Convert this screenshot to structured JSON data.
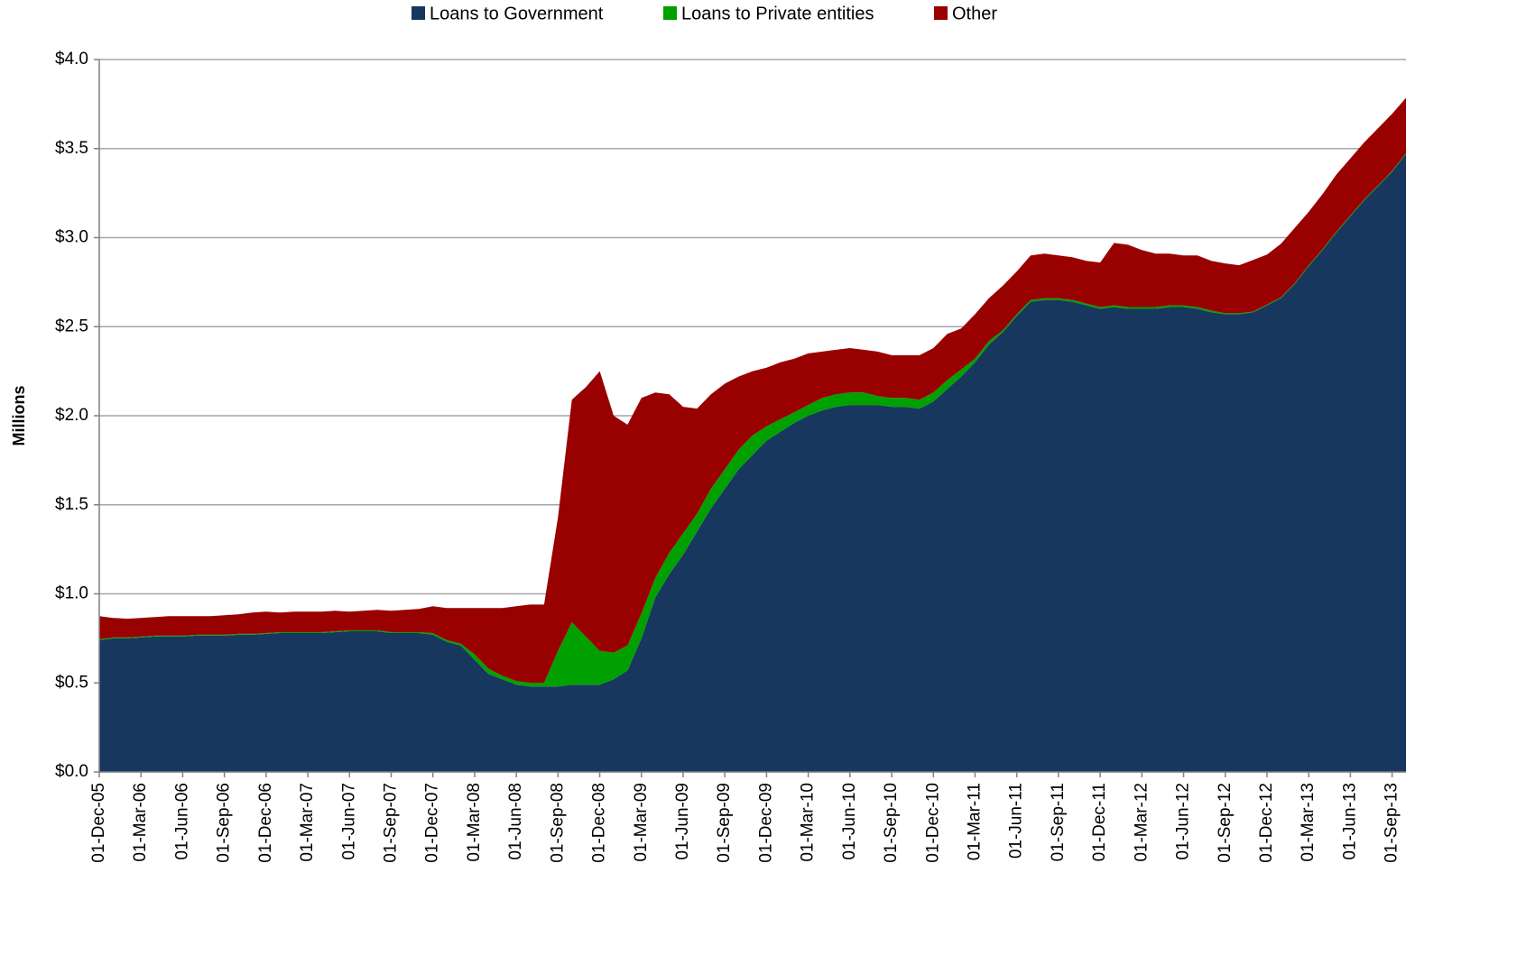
{
  "chart_data": {
    "type": "stacked-area",
    "y_label": "Millions",
    "ylim": [
      0,
      4
    ],
    "yticks": [
      {
        "value": 0,
        "label": "$0.0"
      },
      {
        "value": 0.5,
        "label": "$0.5"
      },
      {
        "value": 1,
        "label": "$1.0"
      },
      {
        "value": 1.5,
        "label": "$1.5"
      },
      {
        "value": 2,
        "label": "$2.0"
      },
      {
        "value": 2.5,
        "label": "$2.5"
      },
      {
        "value": 3,
        "label": "$3.0"
      },
      {
        "value": 3.5,
        "label": "$3.5"
      },
      {
        "value": 4,
        "label": "$4.0"
      }
    ],
    "grid": true,
    "legend": "top",
    "categories": [
      "01-Dec-05",
      null,
      null,
      "01-Mar-06",
      null,
      null,
      "01-Jun-06",
      null,
      null,
      "01-Sep-06",
      null,
      null,
      "01-Dec-06",
      null,
      null,
      "01-Mar-07",
      null,
      null,
      "01-Jun-07",
      null,
      null,
      "01-Sep-07",
      null,
      null,
      "01-Dec-07",
      null,
      null,
      "01-Mar-08",
      null,
      null,
      "01-Jun-08",
      null,
      null,
      "01-Sep-08",
      null,
      null,
      "01-Dec-08",
      null,
      null,
      "01-Mar-09",
      null,
      null,
      "01-Jun-09",
      null,
      null,
      "01-Sep-09",
      null,
      null,
      "01-Dec-09",
      null,
      null,
      "01-Mar-10",
      null,
      null,
      "01-Jun-10",
      null,
      null,
      "01-Sep-10",
      null,
      null,
      "01-Dec-10",
      null,
      null,
      "01-Mar-11",
      null,
      null,
      "01-Jun-11",
      null,
      null,
      "01-Sep-11",
      null,
      null,
      "01-Dec-11",
      null,
      null,
      "01-Mar-12",
      null,
      null,
      "01-Jun-12",
      null,
      null,
      "01-Sep-12",
      null,
      null,
      "01-Dec-12",
      null,
      null,
      "01-Mar-13",
      null,
      null,
      "01-Jun-13",
      null,
      null,
      "01-Sep-13",
      null
    ],
    "series": [
      {
        "name": "Loans to Government",
        "color": "#17375e",
        "values": [
          0.74,
          0.75,
          0.75,
          0.755,
          0.76,
          0.76,
          0.76,
          0.765,
          0.765,
          0.765,
          0.77,
          0.77,
          0.775,
          0.78,
          0.78,
          0.78,
          0.78,
          0.785,
          0.79,
          0.79,
          0.79,
          0.78,
          0.78,
          0.78,
          0.77,
          0.73,
          0.71,
          0.63,
          0.55,
          0.52,
          0.49,
          0.48,
          0.48,
          0.48,
          0.49,
          0.49,
          0.49,
          0.52,
          0.57,
          0.75,
          0.98,
          1.11,
          1.22,
          1.35,
          1.48,
          1.59,
          1.7,
          1.78,
          1.86,
          1.91,
          1.96,
          2.0,
          2.03,
          2.05,
          2.06,
          2.06,
          2.06,
          2.05,
          2.05,
          2.04,
          2.08,
          2.15,
          2.22,
          2.3,
          2.4,
          2.47,
          2.56,
          2.64,
          2.65,
          2.65,
          2.64,
          2.62,
          2.6,
          2.61,
          2.6,
          2.6,
          2.6,
          2.61,
          2.61,
          2.6,
          2.58,
          2.57,
          2.57,
          2.58,
          2.62,
          2.66,
          2.74,
          2.84,
          2.93,
          3.03,
          3.12,
          3.21,
          3.29,
          3.37,
          3.47
        ]
      },
      {
        "name": "Loans to Private entities",
        "color": "#00a000",
        "values": [
          0.005,
          0.005,
          0.005,
          0.005,
          0.005,
          0.005,
          0.005,
          0.005,
          0.005,
          0.005,
          0.005,
          0.005,
          0.005,
          0.005,
          0.005,
          0.005,
          0.005,
          0.005,
          0.005,
          0.005,
          0.005,
          0.005,
          0.005,
          0.005,
          0.01,
          0.01,
          0.01,
          0.03,
          0.03,
          0.02,
          0.02,
          0.02,
          0.02,
          0.2,
          0.35,
          0.27,
          0.19,
          0.15,
          0.14,
          0.14,
          0.11,
          0.12,
          0.12,
          0.1,
          0.11,
          0.11,
          0.11,
          0.11,
          0.08,
          0.07,
          0.06,
          0.06,
          0.07,
          0.07,
          0.07,
          0.07,
          0.05,
          0.05,
          0.05,
          0.05,
          0.05,
          0.05,
          0.04,
          0.02,
          0.02,
          0.01,
          0.01,
          0.01,
          0.01,
          0.01,
          0.01,
          0.01,
          0.01,
          0.01,
          0.01,
          0.01,
          0.01,
          0.01,
          0.01,
          0.01,
          0.01,
          0.005,
          0.005,
          0.005,
          0.005,
          0.005,
          0.005,
          0.005,
          0.005,
          0.005,
          0.005,
          0.005,
          0.005,
          0.005,
          0.005
        ]
      },
      {
        "name": "Other",
        "color": "#990000",
        "values": [
          0.13,
          0.11,
          0.105,
          0.105,
          0.105,
          0.11,
          0.11,
          0.105,
          0.105,
          0.11,
          0.11,
          0.12,
          0.12,
          0.11,
          0.115,
          0.115,
          0.115,
          0.115,
          0.105,
          0.11,
          0.115,
          0.12,
          0.125,
          0.13,
          0.15,
          0.18,
          0.2,
          0.26,
          0.34,
          0.38,
          0.42,
          0.44,
          0.44,
          0.75,
          1.25,
          1.4,
          1.57,
          1.33,
          1.24,
          1.21,
          1.04,
          0.89,
          0.71,
          0.59,
          0.53,
          0.48,
          0.41,
          0.36,
          0.33,
          0.32,
          0.3,
          0.29,
          0.26,
          0.25,
          0.25,
          0.24,
          0.25,
          0.24,
          0.24,
          0.25,
          0.25,
          0.26,
          0.23,
          0.25,
          0.24,
          0.25,
          0.24,
          0.25,
          0.25,
          0.24,
          0.24,
          0.24,
          0.25,
          0.35,
          0.35,
          0.32,
          0.3,
          0.29,
          0.28,
          0.29,
          0.28,
          0.28,
          0.27,
          0.29,
          0.28,
          0.3,
          0.31,
          0.3,
          0.31,
          0.32,
          0.32,
          0.32,
          0.32,
          0.32,
          0.31
        ]
      }
    ]
  }
}
